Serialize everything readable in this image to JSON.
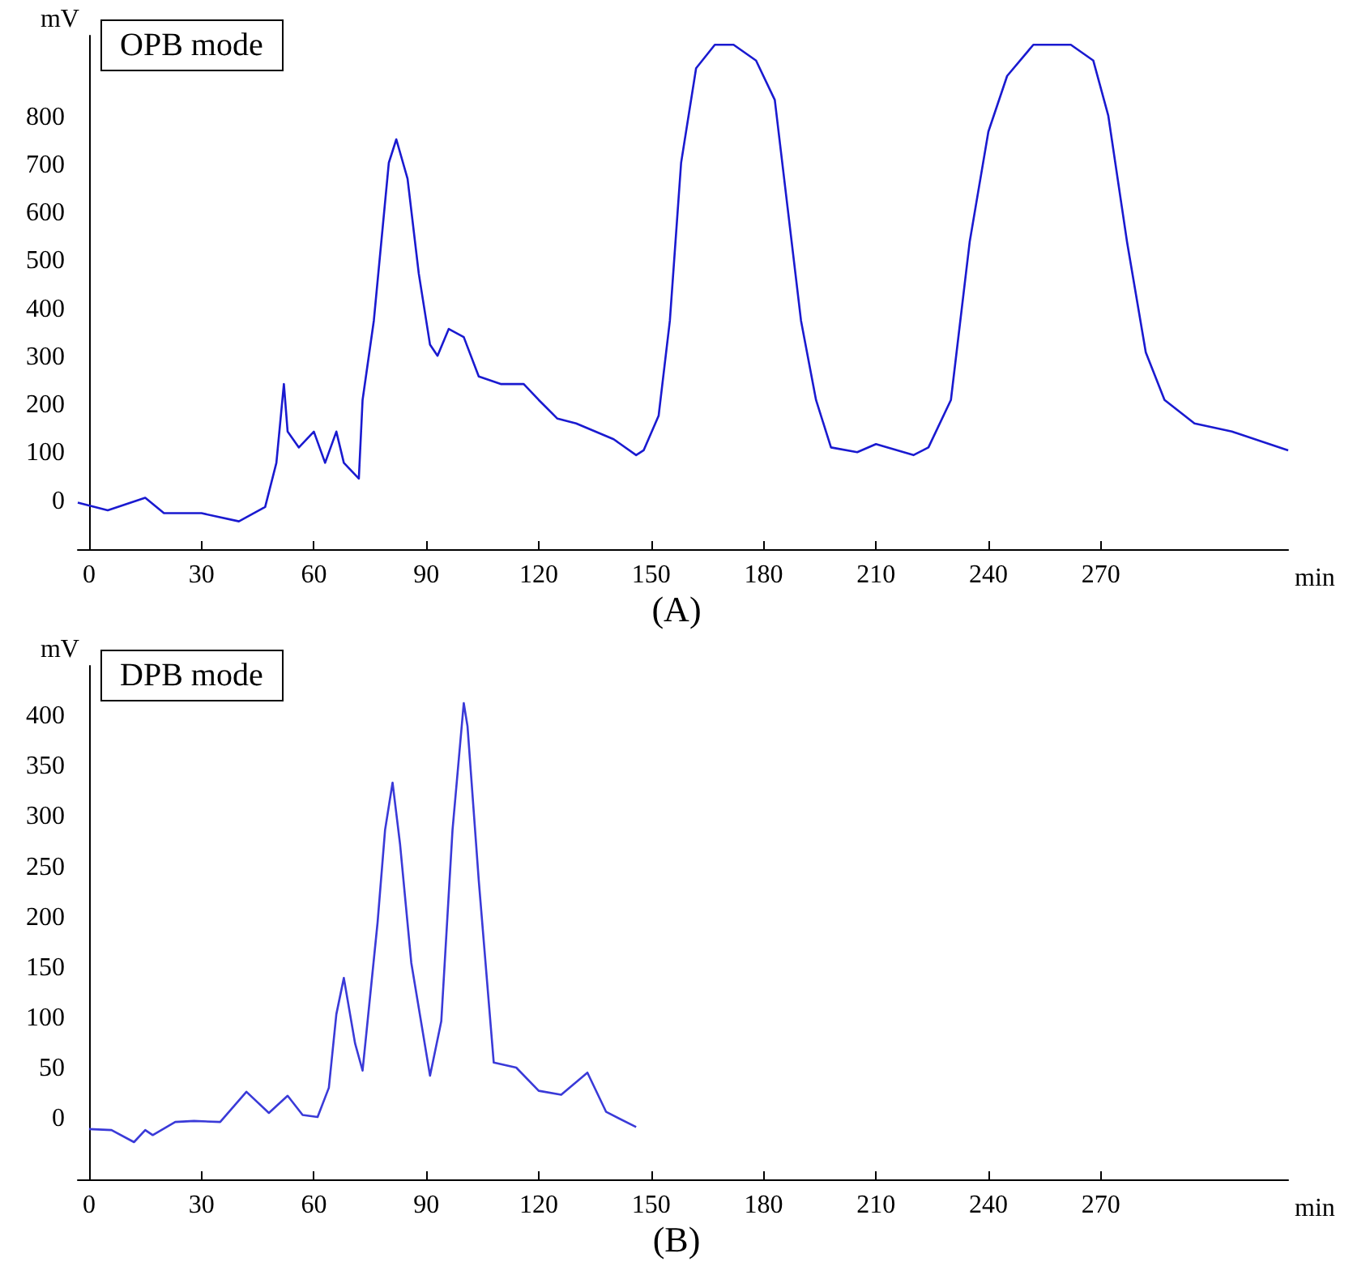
{
  "chart_data": [
    {
      "type": "line",
      "title": "OPB mode",
      "xlabel": "min",
      "ylabel": "mV",
      "annotations": [
        "(A)"
      ],
      "xlim": [
        -3,
        320
      ],
      "xticks": [
        0,
        30,
        60,
        90,
        120,
        150,
        180,
        210,
        240,
        270
      ],
      "ylim": [
        -100,
        970
      ],
      "yticks": [
        0,
        100,
        200,
        300,
        400,
        500,
        600,
        700,
        800
      ],
      "grid": false,
      "marker": "none",
      "line_style": "solid",
      "series": [
        {
          "color": "#1a1ad0",
          "x": [
            -3,
            5,
            15,
            20,
            30,
            40,
            47,
            50,
            52,
            53,
            56,
            60,
            63,
            66,
            68,
            72,
            73,
            76,
            80,
            82,
            85,
            88,
            91,
            93,
            96,
            100,
            104,
            110,
            116,
            120,
            125,
            130,
            140,
            146,
            148,
            152,
            155,
            158,
            162,
            167,
            172,
            178,
            183,
            186,
            190,
            194,
            198,
            205,
            210,
            220,
            224,
            230,
            235,
            240,
            245,
            252,
            262,
            268,
            272,
            277,
            282,
            287,
            295,
            305,
            315,
            320
          ],
          "values": [
            -3,
            -19,
            7,
            -25,
            -25,
            -42,
            -12,
            80,
            244,
            145,
            112,
            145,
            80,
            145,
            80,
            47,
            211,
            376,
            705,
            754,
            672,
            474,
            326,
            303,
            359,
            342,
            260,
            244,
            244,
            211,
            172,
            162,
            129,
            96,
            106,
            178,
            376,
            705,
            902,
            951,
            951,
            918,
            836,
            639,
            376,
            211,
            112,
            102,
            119,
            96,
            112,
            211,
            540,
            770,
            886,
            951,
            951,
            918,
            803,
            540,
            310,
            211,
            162,
            145,
            119,
            106
          ]
        }
      ]
    },
    {
      "type": "line",
      "title": "DPB mode",
      "xlabel": "min",
      "ylabel": "mV",
      "annotations": [
        "(B)"
      ],
      "xlim": [
        -3,
        320
      ],
      "xticks": [
        0,
        30,
        60,
        90,
        120,
        150,
        180,
        210,
        240,
        270
      ],
      "ylim": [
        -60,
        450
      ],
      "yticks": [
        0,
        50,
        100,
        150,
        200,
        250,
        300,
        350,
        400
      ],
      "grid": false,
      "marker": "none",
      "line_style": "solid",
      "series": [
        {
          "color": "#3a3ad8",
          "x": [
            0,
            6,
            12,
            15,
            17,
            23,
            28,
            35,
            42,
            48,
            53,
            57,
            61,
            64,
            66,
            68,
            71,
            73,
            77,
            79,
            81,
            83,
            86,
            91,
            94,
            97,
            100,
            101,
            104,
            108,
            114,
            120,
            126,
            133,
            138,
            146
          ],
          "values": [
            -10,
            -11,
            -23,
            -11,
            -16,
            -3,
            -2,
            -3,
            27,
            6,
            23,
            4,
            2,
            31,
            104,
            140,
            75,
            48,
            195,
            287,
            334,
            273,
            155,
            43,
            97,
            287,
            413,
            390,
            237,
            56,
            51,
            28,
            24,
            46,
            7,
            -8
          ]
        }
      ]
    }
  ]
}
